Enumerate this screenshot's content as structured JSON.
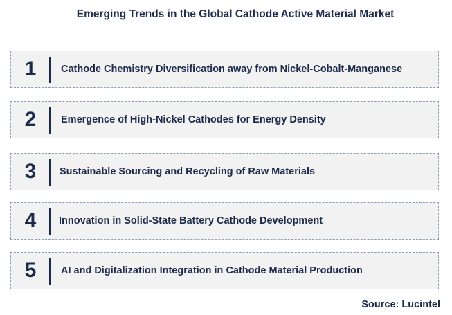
{
  "title": "Emerging Trends in the Global Cathode Active Material Market",
  "trends": [
    {
      "number": "1",
      "text": "Cathode Chemistry Diversification away from Nickel-Cobalt-Manganese"
    },
    {
      "number": "2",
      "text": "Emergence of High-Nickel Cathodes for Energy Density"
    },
    {
      "number": "3",
      "text": "Sustainable Sourcing and Recycling of Raw Materials"
    },
    {
      "number": "4",
      "text": "Innovation in Solid-State Battery Cathode Development"
    },
    {
      "number": "5",
      "text": "AI and Digitalization Integration in Cathode Material Production"
    }
  ],
  "source": "Source: Lucintel",
  "colors": {
    "text": "#1c2b4a",
    "box_fill": "#f2f2f2",
    "box_border": "#8a9bbd"
  }
}
